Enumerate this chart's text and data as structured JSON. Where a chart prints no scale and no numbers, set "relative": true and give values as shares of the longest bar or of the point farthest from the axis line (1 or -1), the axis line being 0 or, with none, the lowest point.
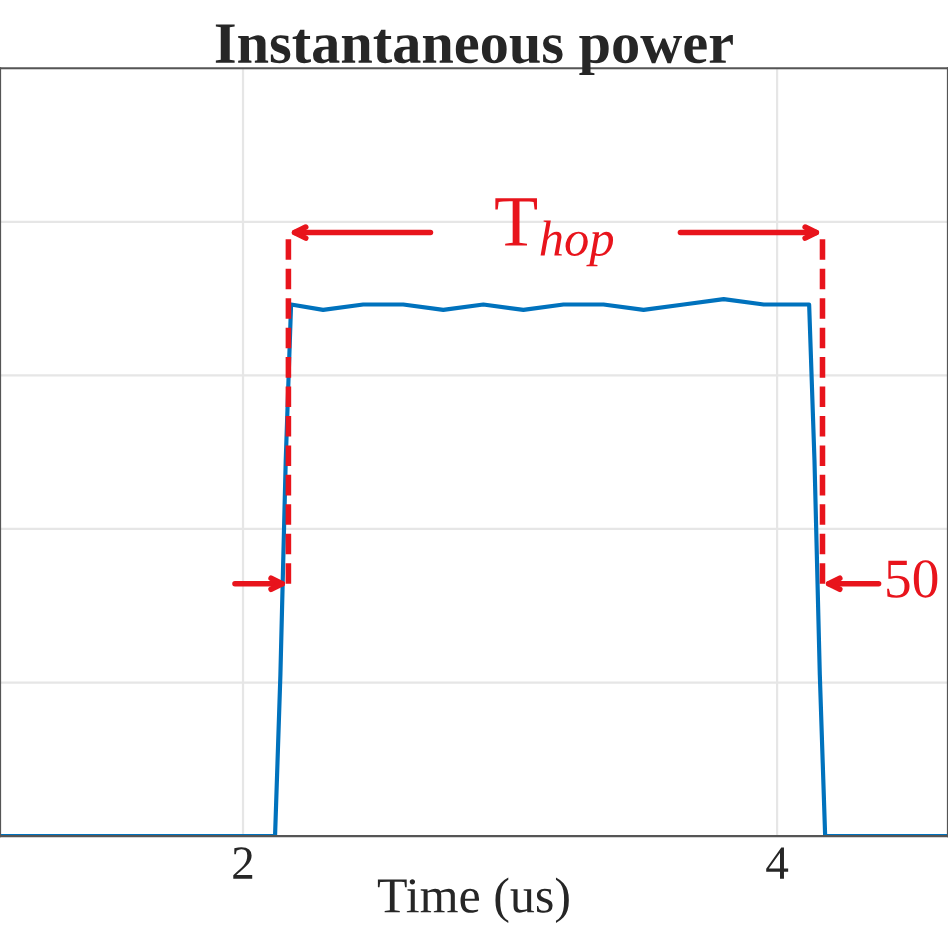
{
  "chart_data": {
    "type": "line",
    "title": "Instantaneous power",
    "xlabel": "Time (us)",
    "relative": true,
    "xlim": [
      1.09,
      4.64
    ],
    "xticks": [
      2,
      4
    ],
    "grid": true,
    "tick_labels": "x",
    "series": [
      {
        "color": "#0072bd",
        "x": [
          1.09,
          1.6,
          2.12,
          2.14,
          2.16,
          2.18,
          2.3,
          2.45,
          2.6,
          2.75,
          2.9,
          3.05,
          3.2,
          3.35,
          3.5,
          3.65,
          3.8,
          3.95,
          4.12,
          4.14,
          4.16,
          4.18,
          4.4,
          4.64
        ],
        "values": [
          0,
          0,
          0,
          0.3,
          0.7,
          0.99,
          0.98,
          0.99,
          0.99,
          0.98,
          0.99,
          0.98,
          0.99,
          0.99,
          0.98,
          0.99,
          1,
          0.99,
          0.99,
          0.7,
          0.3,
          0,
          0,
          0
        ]
      }
    ],
    "ref_lines": [
      {
        "axis": "x",
        "value": 2.17,
        "color": "#e8141c",
        "line_style": "dashed"
      },
      {
        "axis": "x",
        "value": 4.17,
        "color": "#e8141c",
        "line_style": "dashed"
      }
    ],
    "annotations": [
      "T$_{hop}$",
      {
        "text": "50",
        "x": 4.17,
        "y": 0.47
      }
    ]
  }
}
